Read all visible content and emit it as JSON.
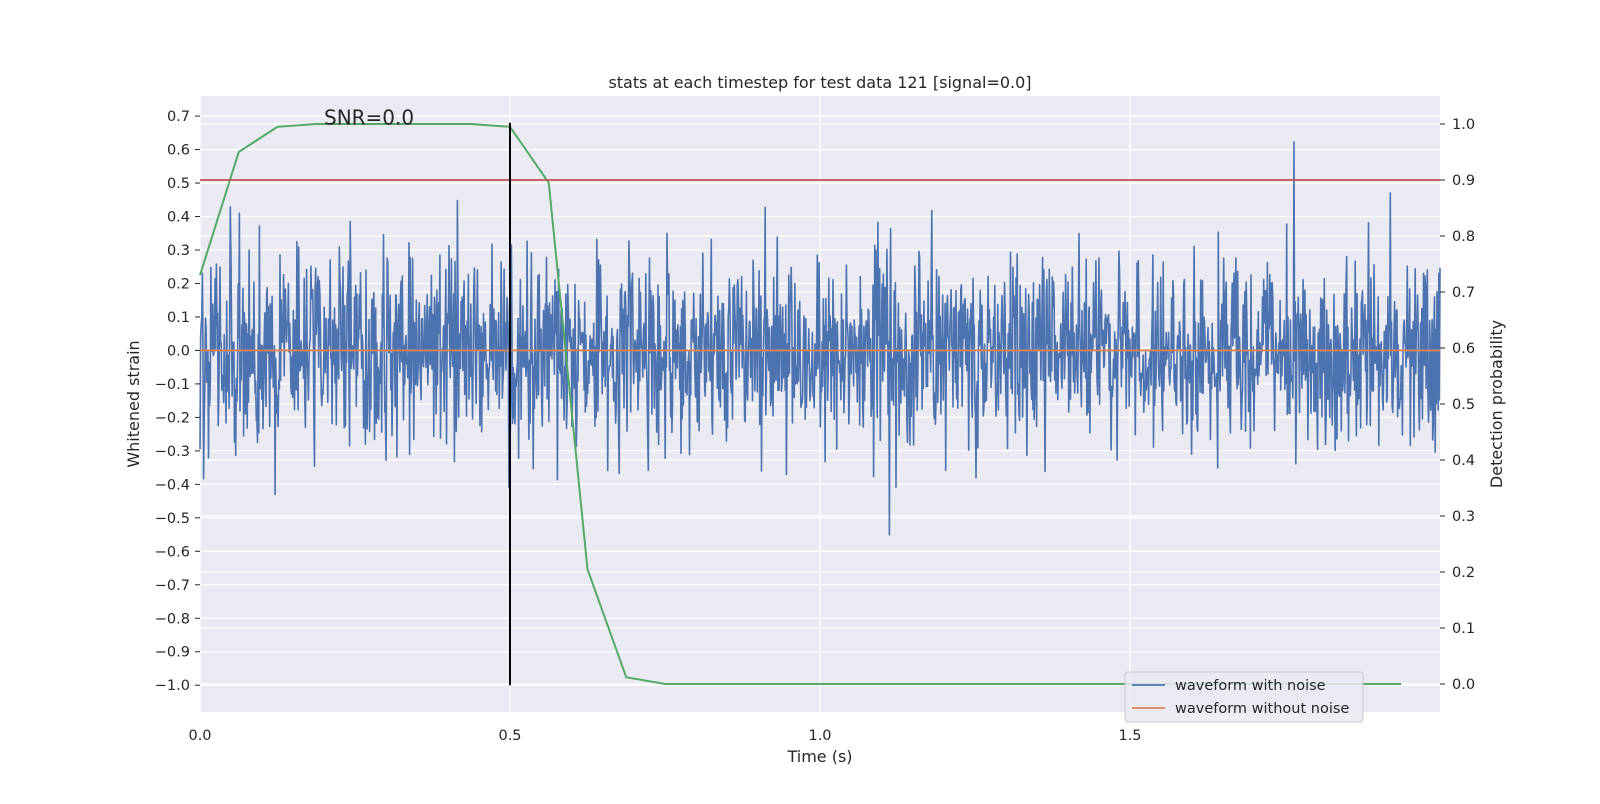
{
  "chart_data": {
    "type": "line",
    "title": "stats at each timestep for test data 121 [signal=0.0]",
    "annotation": "SNR=0.0",
    "xlabel": "Time (s)",
    "ylabel": "Whitened strain",
    "y2label": "Detection probability",
    "xlim": [
      0.0,
      2.0
    ],
    "ylim": [
      -1.08,
      0.76
    ],
    "y2lim": [
      -0.05,
      1.05
    ],
    "xticks": [
      0.0,
      0.5,
      1.0,
      1.5
    ],
    "xtick_labels": [
      "0.0",
      "0.5",
      "1.0",
      "1.5"
    ],
    "yticks": [
      0.7,
      0.6,
      0.5,
      0.4,
      0.3,
      0.2,
      0.1,
      0.0,
      -0.1,
      -0.2,
      -0.3,
      -0.4,
      -0.5,
      -0.6,
      -0.7,
      -0.8,
      -0.9,
      -1.0
    ],
    "ytick_labels": [
      "0.7",
      "0.6",
      "0.5",
      "0.4",
      "0.3",
      "0.2",
      "0.1",
      "0.0",
      "−0.1",
      "−0.2",
      "−0.3",
      "−0.4",
      "−0.5",
      "−0.6",
      "−0.7",
      "−0.8",
      "−0.9",
      "−1.0"
    ],
    "y2ticks": [
      1.0,
      0.9,
      0.8,
      0.7,
      0.6,
      0.5,
      0.4,
      0.3,
      0.2,
      0.1,
      0.0
    ],
    "y2tick_labels": [
      "1.0",
      "0.9",
      "0.8",
      "0.7",
      "0.6",
      "0.5",
      "0.4",
      "0.3",
      "0.2",
      "0.1",
      "0.0"
    ],
    "grid": true,
    "legend_position": "lower-right",
    "series": [
      {
        "name": "waveform with noise",
        "color": "#4c72b0",
        "axis": "left",
        "t_start": 0.0,
        "t_end": 2.0,
        "num_samples": 2048,
        "noise_std": 0.19,
        "noise_min": -1.0,
        "noise_max": 0.68
      },
      {
        "name": "waveform without noise",
        "color": "#dd8452",
        "axis": "left",
        "x": [
          0.0,
          2.0
        ],
        "y": [
          0.0,
          0.0
        ]
      },
      {
        "name": "",
        "color": "#55a868",
        "axis": "right",
        "x": [
          0.0,
          0.0625,
          0.125,
          0.1875,
          0.25,
          0.3125,
          0.375,
          0.4375,
          0.5,
          0.5625,
          0.625,
          0.6875,
          0.75,
          0.8125,
          0.875,
          0.9375,
          1.0,
          1.0625,
          1.125,
          1.1875,
          1.25,
          1.3125,
          1.375,
          1.4375,
          1.5,
          1.5625,
          1.625,
          1.6875,
          1.75,
          1.8125,
          1.875,
          1.9375
        ],
        "y": [
          0.73,
          0.95,
          0.995,
          1.0,
          1.0,
          1.0,
          1.0,
          1.0,
          0.995,
          0.895,
          0.205,
          0.012,
          0.0,
          0.0,
          0.0,
          0.0,
          0.0,
          0.0,
          0.0,
          0.0,
          0.0,
          0.0,
          0.0,
          0.0,
          0.0,
          0.0,
          0.0,
          0.0,
          0.0,
          0.0,
          0.0,
          0.0
        ]
      }
    ],
    "hlines": [
      {
        "axis": "right",
        "y": 0.9,
        "color": "#c44e52"
      }
    ],
    "vlines": [
      {
        "x": 0.5,
        "ymin": -1.0,
        "ymax": 0.68,
        "color": "#000000"
      }
    ],
    "annotation_x": 0.2,
    "annotation_y": 0.675
  }
}
